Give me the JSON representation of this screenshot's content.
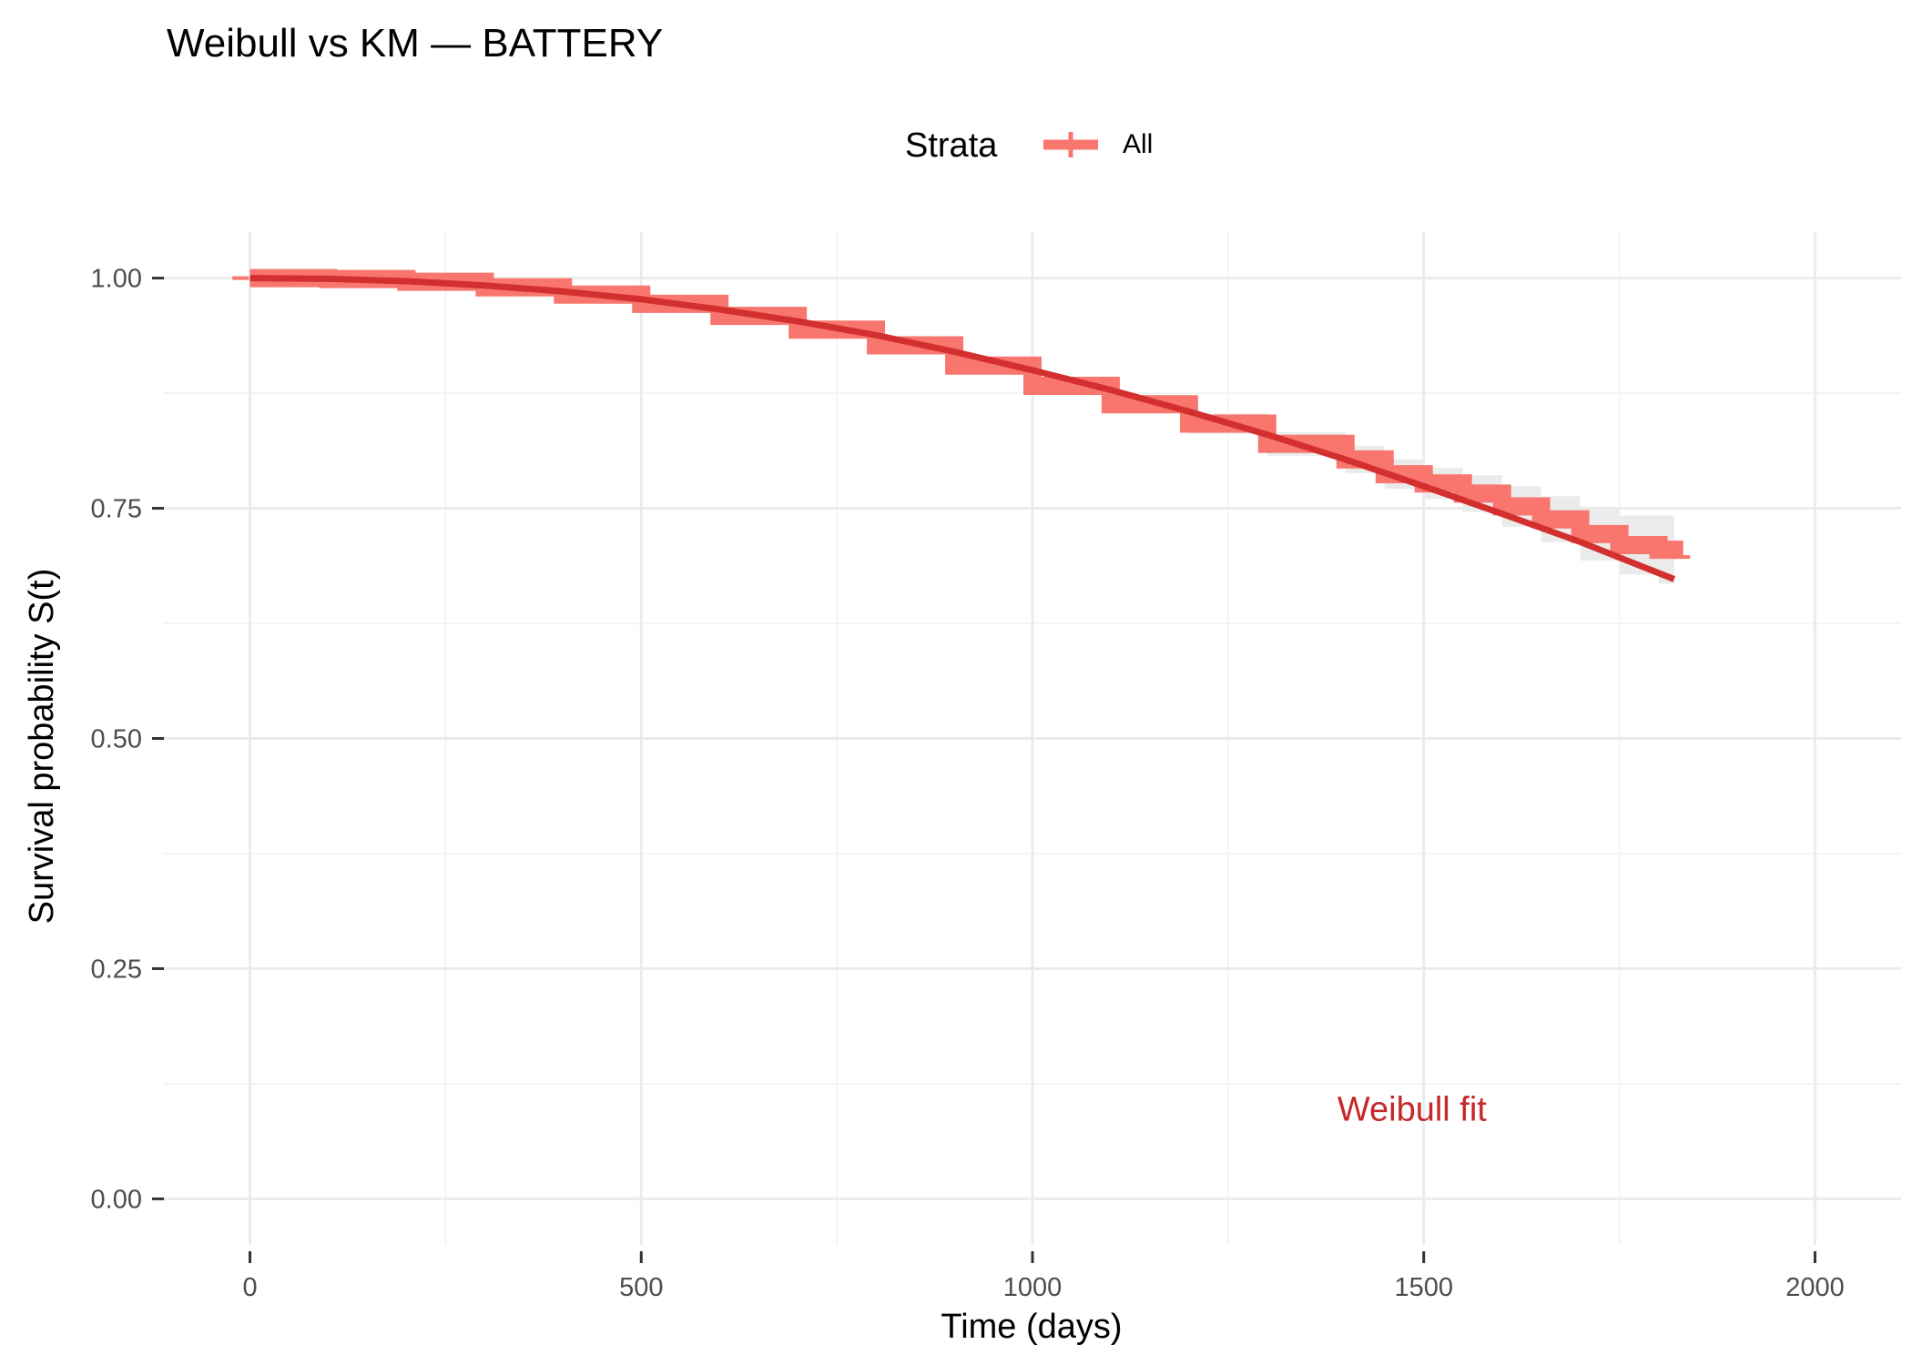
{
  "chart_data": {
    "type": "line",
    "title": "Weibull vs KM — BATTERY",
    "xlabel": "Time (days)",
    "ylabel": "Survival probability S(t)",
    "xlim": [
      -110,
      2110
    ],
    "ylim": [
      -0.05,
      1.05
    ],
    "x_ticks": [
      0,
      500,
      1000,
      1500,
      2000
    ],
    "x_tick_labels": [
      "0",
      "500",
      "1000",
      "1500",
      "2000"
    ],
    "y_ticks": [
      0,
      0.25,
      0.5,
      0.75,
      1.0
    ],
    "y_tick_labels": [
      "0.00",
      "0.25",
      "0.50",
      "0.75",
      "1.00"
    ],
    "x_minor": [
      250,
      750,
      1250,
      1750
    ],
    "y_minor": [
      0.125,
      0.375,
      0.625,
      0.875
    ],
    "grid": true,
    "legend": {
      "title": "Strata",
      "position": "top",
      "entries": [
        {
          "label": "All",
          "color": "#F8766D"
        }
      ]
    },
    "annotation": {
      "text": "Weibull fit",
      "x": 1485,
      "y": 0.098,
      "color": "#C62828"
    },
    "series": [
      {
        "name": "All",
        "kind": "km_step",
        "color": "#F8766D",
        "x": [
          0,
          100,
          200,
          300,
          400,
          500,
          600,
          700,
          800,
          900,
          1000,
          1100,
          1200,
          1300,
          1400,
          1450,
          1500,
          1550,
          1600,
          1650,
          1700,
          1750,
          1800,
          1820
        ],
        "y": [
          1.0,
          0.999,
          0.996,
          0.99,
          0.982,
          0.972,
          0.959,
          0.944,
          0.927,
          0.905,
          0.883,
          0.863,
          0.842,
          0.82,
          0.803,
          0.787,
          0.777,
          0.766,
          0.752,
          0.738,
          0.722,
          0.71,
          0.705,
          0.697
        ],
        "ci_lower": [
          1.0,
          0.998,
          0.994,
          0.987,
          0.978,
          0.968,
          0.954,
          0.938,
          0.92,
          0.897,
          0.874,
          0.853,
          0.831,
          0.807,
          0.788,
          0.771,
          0.76,
          0.746,
          0.73,
          0.713,
          0.693,
          0.678,
          0.668,
          0.662
        ],
        "ci_upper": [
          1.0,
          1.0,
          0.998,
          0.993,
          0.986,
          0.976,
          0.964,
          0.95,
          0.934,
          0.913,
          0.892,
          0.873,
          0.853,
          0.833,
          0.818,
          0.803,
          0.794,
          0.786,
          0.774,
          0.763,
          0.751,
          0.742,
          0.742,
          0.732
        ],
        "censor_marks": [
          [
            -12,
            1.0
          ],
          [
            1830,
            0.697
          ]
        ]
      },
      {
        "name": "Weibull fit",
        "kind": "line",
        "color": "#D32F2F",
        "x": [
          0,
          100,
          200,
          300,
          400,
          500,
          600,
          700,
          800,
          900,
          1000,
          1100,
          1200,
          1300,
          1400,
          1500,
          1600,
          1700,
          1820
        ],
        "y": [
          1.0,
          0.9992,
          0.9966,
          0.992,
          0.9855,
          0.977,
          0.966,
          0.953,
          0.938,
          0.92,
          0.9,
          0.8785,
          0.855,
          0.83,
          0.803,
          0.774,
          0.744,
          0.7135,
          0.673
        ]
      }
    ]
  }
}
